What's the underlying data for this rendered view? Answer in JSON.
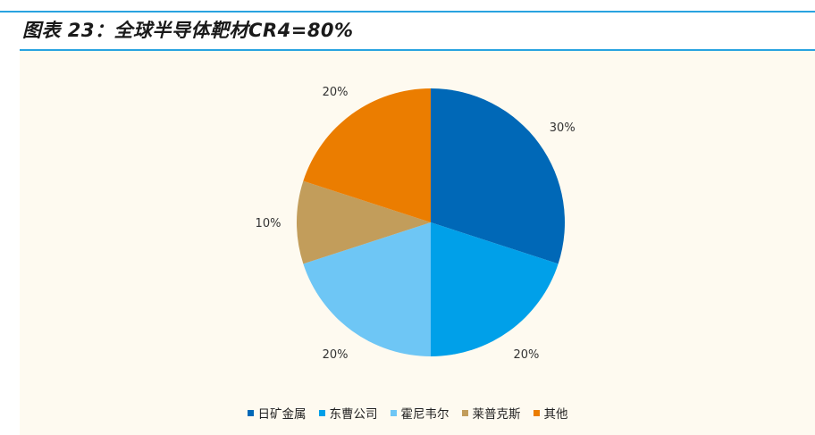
{
  "title": "图表 23：全球半导体靶材CR4=80%",
  "colors": {
    "rule": "#29a3e0",
    "background": "#fefaf0"
  },
  "chart_data": {
    "type": "pie",
    "title": "图表 23：全球半导体靶材CR4=80%",
    "start_angle_deg": 0,
    "direction": "clockwise",
    "legend_position": "bottom",
    "slices": [
      {
        "name": "日矿金属",
        "value": 30,
        "label": "30%",
        "color": "#0068b7"
      },
      {
        "name": "东曹公司",
        "value": 20,
        "label": "20%",
        "color": "#00a0e9"
      },
      {
        "name": "霍尼韦尔",
        "value": 20,
        "label": "20%",
        "color": "#6ec6f5"
      },
      {
        "name": "莱普克斯",
        "value": 10,
        "label": "10%",
        "color": "#c29d5b"
      },
      {
        "name": "其他",
        "value": 20,
        "label": "20%",
        "color": "#eb7d00"
      }
    ]
  }
}
